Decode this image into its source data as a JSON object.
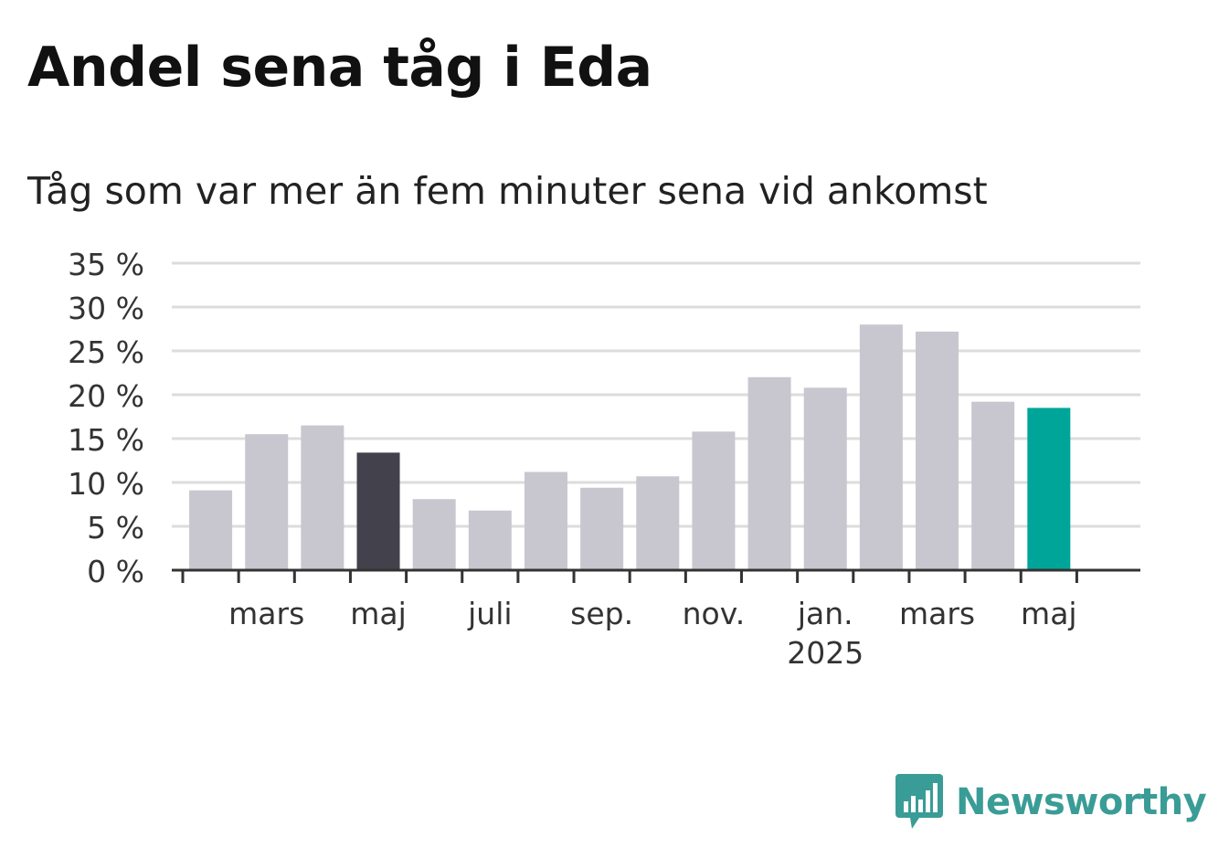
{
  "title": "Andel sena tåg i Eda",
  "subtitle": "Tåg som var mer än fem minuter sena vid ankomst",
  "brand": {
    "name": "Newsworthy",
    "icon": "newsworthy-logo-icon",
    "color": "#3a9c96"
  },
  "chart_data": {
    "type": "bar",
    "categories": [
      "2024-02",
      "2024-03",
      "2024-04",
      "2024-05",
      "2024-06",
      "2024-07",
      "2024-08",
      "2024-09",
      "2024-10",
      "2024-11",
      "2024-12",
      "2025-01",
      "2025-02",
      "2025-03",
      "2025-04",
      "2025-05"
    ],
    "values": [
      9.1,
      15.5,
      16.5,
      13.4,
      8.1,
      6.8,
      11.2,
      9.4,
      10.7,
      15.8,
      22.0,
      20.8,
      28.0,
      27.2,
      19.2,
      18.5
    ],
    "y_ticks": [
      "35 %",
      "30 %",
      "25 %",
      "20 %",
      "15 %",
      "10 %",
      "5 %",
      "0 %"
    ],
    "y_tick_values": [
      35,
      30,
      25,
      20,
      15,
      10,
      5,
      0
    ],
    "x_tick_labels": [
      {
        "label": "mars",
        "sublabel": "",
        "category": "2024-03"
      },
      {
        "label": "maj",
        "sublabel": "",
        "category": "2024-05"
      },
      {
        "label": "juli",
        "sublabel": "",
        "category": "2024-07"
      },
      {
        "label": "sep.",
        "sublabel": "",
        "category": "2024-09"
      },
      {
        "label": "nov.",
        "sublabel": "",
        "category": "2024-11"
      },
      {
        "label": "jan.",
        "sublabel": "2025",
        "category": "2025-01"
      },
      {
        "label": "mars",
        "sublabel": "",
        "category": "2025-03"
      },
      {
        "label": "maj",
        "sublabel": "",
        "category": "2025-05"
      }
    ],
    "ylim": [
      0,
      35
    ],
    "grid": true,
    "colors": {
      "default": "#c8c7cf",
      "highlight_prev_year": "#43414b",
      "highlight_current": "#00a59a",
      "grid": "#dcdcdc",
      "axis": "#333333"
    },
    "highlight": {
      "2024-05": "highlight_prev_year",
      "2025-05": "highlight_current"
    }
  }
}
